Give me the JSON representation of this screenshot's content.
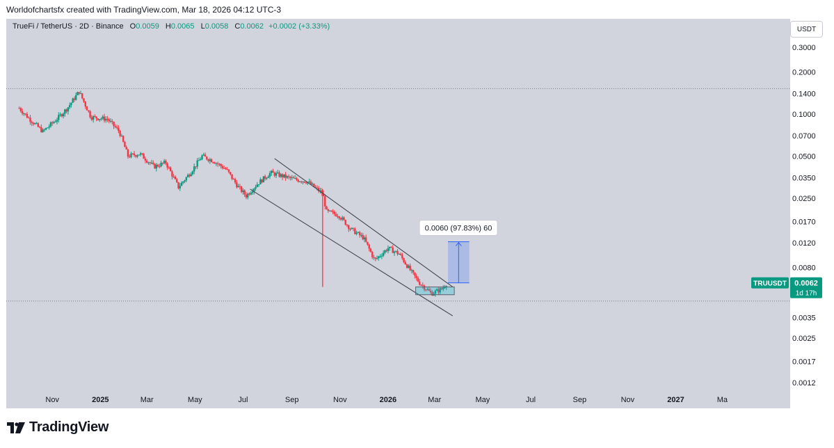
{
  "header": {
    "attribution": "Worldofchartsfx created with TradingView.com, Mar 18, 2026 04:12 UTC-3"
  },
  "legend": {
    "symbol": "TrueFi / TetherUS · 2D · Binance",
    "open_label": "O",
    "open": "0.0059",
    "high_label": "H",
    "high": "0.0065",
    "low_label": "L",
    "low": "0.0058",
    "close_label": "C",
    "close": "0.0062",
    "change": "+0.0002 (+3.33%)"
  },
  "currency": "USDT",
  "price_tag": {
    "symbol": "TRUUSDT",
    "price": "0.0062",
    "countdown": "1d 17h"
  },
  "measure_label": "0.0060 (97.83%) 60",
  "footer": {
    "brand": "TradingView"
  },
  "colors": {
    "up": "#089981",
    "down": "#f23645",
    "background": "#d1d4dc",
    "measure": "#2962ff"
  },
  "chart_data": {
    "type": "candlestick",
    "symbol": "TRUUSDT",
    "interval": "2D",
    "exchange": "Binance",
    "scale": "log",
    "y_ticks": [
      "0.3000",
      "0.2000",
      "0.1400",
      "0.1000",
      "0.0700",
      "0.0500",
      "0.0350",
      "0.0250",
      "0.0170",
      "0.0120",
      "0.0080",
      "0.0035",
      "0.0025",
      "0.0017",
      "0.0012"
    ],
    "x_labels": [
      {
        "label": "Nov",
        "date": "2024-11-01"
      },
      {
        "label": "2025",
        "date": "2025-01-01",
        "bold": true
      },
      {
        "label": "Mar",
        "date": "2025-03-01"
      },
      {
        "label": "May",
        "date": "2025-05-01"
      },
      {
        "label": "Jul",
        "date": "2025-07-01"
      },
      {
        "label": "Sep",
        "date": "2025-09-01"
      },
      {
        "label": "Nov",
        "date": "2025-11-01"
      },
      {
        "label": "2026",
        "date": "2026-01-01",
        "bold": true
      },
      {
        "label": "Mar",
        "date": "2026-03-01"
      },
      {
        "label": "May",
        "date": "2026-05-01"
      },
      {
        "label": "Jul",
        "date": "2026-07-01"
      },
      {
        "label": "Sep",
        "date": "2026-09-01"
      },
      {
        "label": "Nov",
        "date": "2026-11-01"
      },
      {
        "label": "2027",
        "date": "2027-01-01",
        "bold": true
      },
      {
        "label": "Ma",
        "date": "2027-03-01"
      }
    ],
    "price_path": [
      [
        "2024-09-20",
        0.11
      ],
      [
        "2024-10-05",
        0.09
      ],
      [
        "2024-10-20",
        0.075
      ],
      [
        "2024-11-05",
        0.09
      ],
      [
        "2024-11-20",
        0.11
      ],
      [
        "2024-12-05",
        0.145
      ],
      [
        "2024-12-20",
        0.095
      ],
      [
        "2025-01-10",
        0.092
      ],
      [
        "2025-01-25",
        0.075
      ],
      [
        "2025-02-05",
        0.05
      ],
      [
        "2025-02-20",
        0.052
      ],
      [
        "2025-03-10",
        0.042
      ],
      [
        "2025-03-25",
        0.045
      ],
      [
        "2025-04-10",
        0.03
      ],
      [
        "2025-04-25",
        0.038
      ],
      [
        "2025-05-10",
        0.05
      ],
      [
        "2025-05-25",
        0.046
      ],
      [
        "2025-06-10",
        0.04
      ],
      [
        "2025-06-25",
        0.03
      ],
      [
        "2025-07-05",
        0.026
      ],
      [
        "2025-07-20",
        0.032
      ],
      [
        "2025-08-05",
        0.038
      ],
      [
        "2025-08-20",
        0.036
      ],
      [
        "2025-09-05",
        0.034
      ],
      [
        "2025-09-20",
        0.033
      ],
      [
        "2025-10-10",
        0.027
      ],
      [
        "2025-10-15",
        0.02
      ],
      [
        "2025-10-30",
        0.019
      ],
      [
        "2025-11-15",
        0.015
      ],
      [
        "2025-12-01",
        0.013
      ],
      [
        "2025-12-15",
        0.009
      ],
      [
        "2026-01-01",
        0.011
      ],
      [
        "2026-01-15",
        0.01
      ],
      [
        "2026-01-30",
        0.0075
      ],
      [
        "2026-02-10",
        0.0062
      ],
      [
        "2026-02-25",
        0.0052
      ],
      [
        "2026-03-10",
        0.0056
      ],
      [
        "2026-03-17",
        0.0062
      ]
    ],
    "wicks": [
      {
        "date": "2025-10-10",
        "low": 0.0058,
        "high": 0.029
      }
    ],
    "channel": {
      "upper": [
        [
          "2025-08-10",
          0.048
        ],
        [
          "2026-03-24",
          0.0058
        ]
      ],
      "lower": [
        [
          "2025-07-10",
          0.029
        ],
        [
          "2026-03-24",
          0.0036
        ]
      ]
    },
    "horizontal_lines": [
      0.152,
      0.0046
    ],
    "consolidation_box": {
      "start": "2026-02-05",
      "end": "2026-03-26",
      "low": 0.0051,
      "high": 0.0058
    },
    "measure": {
      "date_start": "2026-03-18",
      "date_end": "2026-04-14",
      "from": 0.0062,
      "to": 0.0122,
      "change": "0.0060",
      "percent": "97.83%",
      "bars": 60
    },
    "last": {
      "price": 0.0062,
      "open": 0.0059,
      "high": 0.0065,
      "low": 0.0058,
      "close": 0.0062,
      "change": 0.0002,
      "change_pct": 3.33
    }
  }
}
